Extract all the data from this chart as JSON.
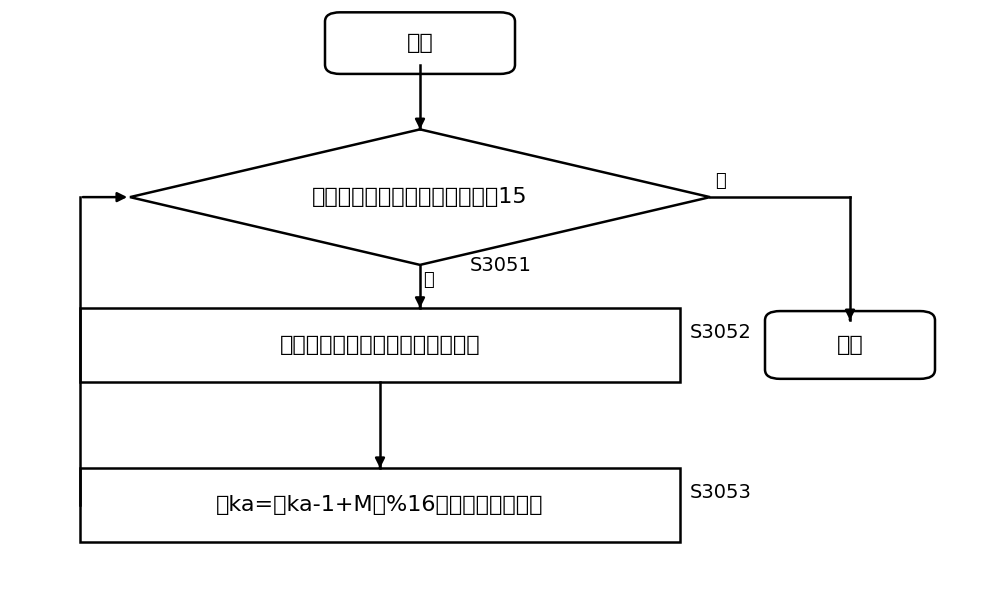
{
  "bg_color": "#ffffff",
  "line_color": "#000000",
  "start_label": "开始",
  "end_label": "结束",
  "diamond_label": "比较切片变量的数值是否不超过15",
  "box1_label": "将切片变量输出到切片变量容器中",
  "box2_label": "按ka=（ka-1+M）%16获取新的切片变量",
  "yes_label": "是",
  "no_label": "否",
  "s3051_label": "S3051",
  "s3052_label": "S3052",
  "s3053_label": "S3053",
  "font_size_main": 16,
  "font_size_small": 13,
  "font_size_step": 14
}
